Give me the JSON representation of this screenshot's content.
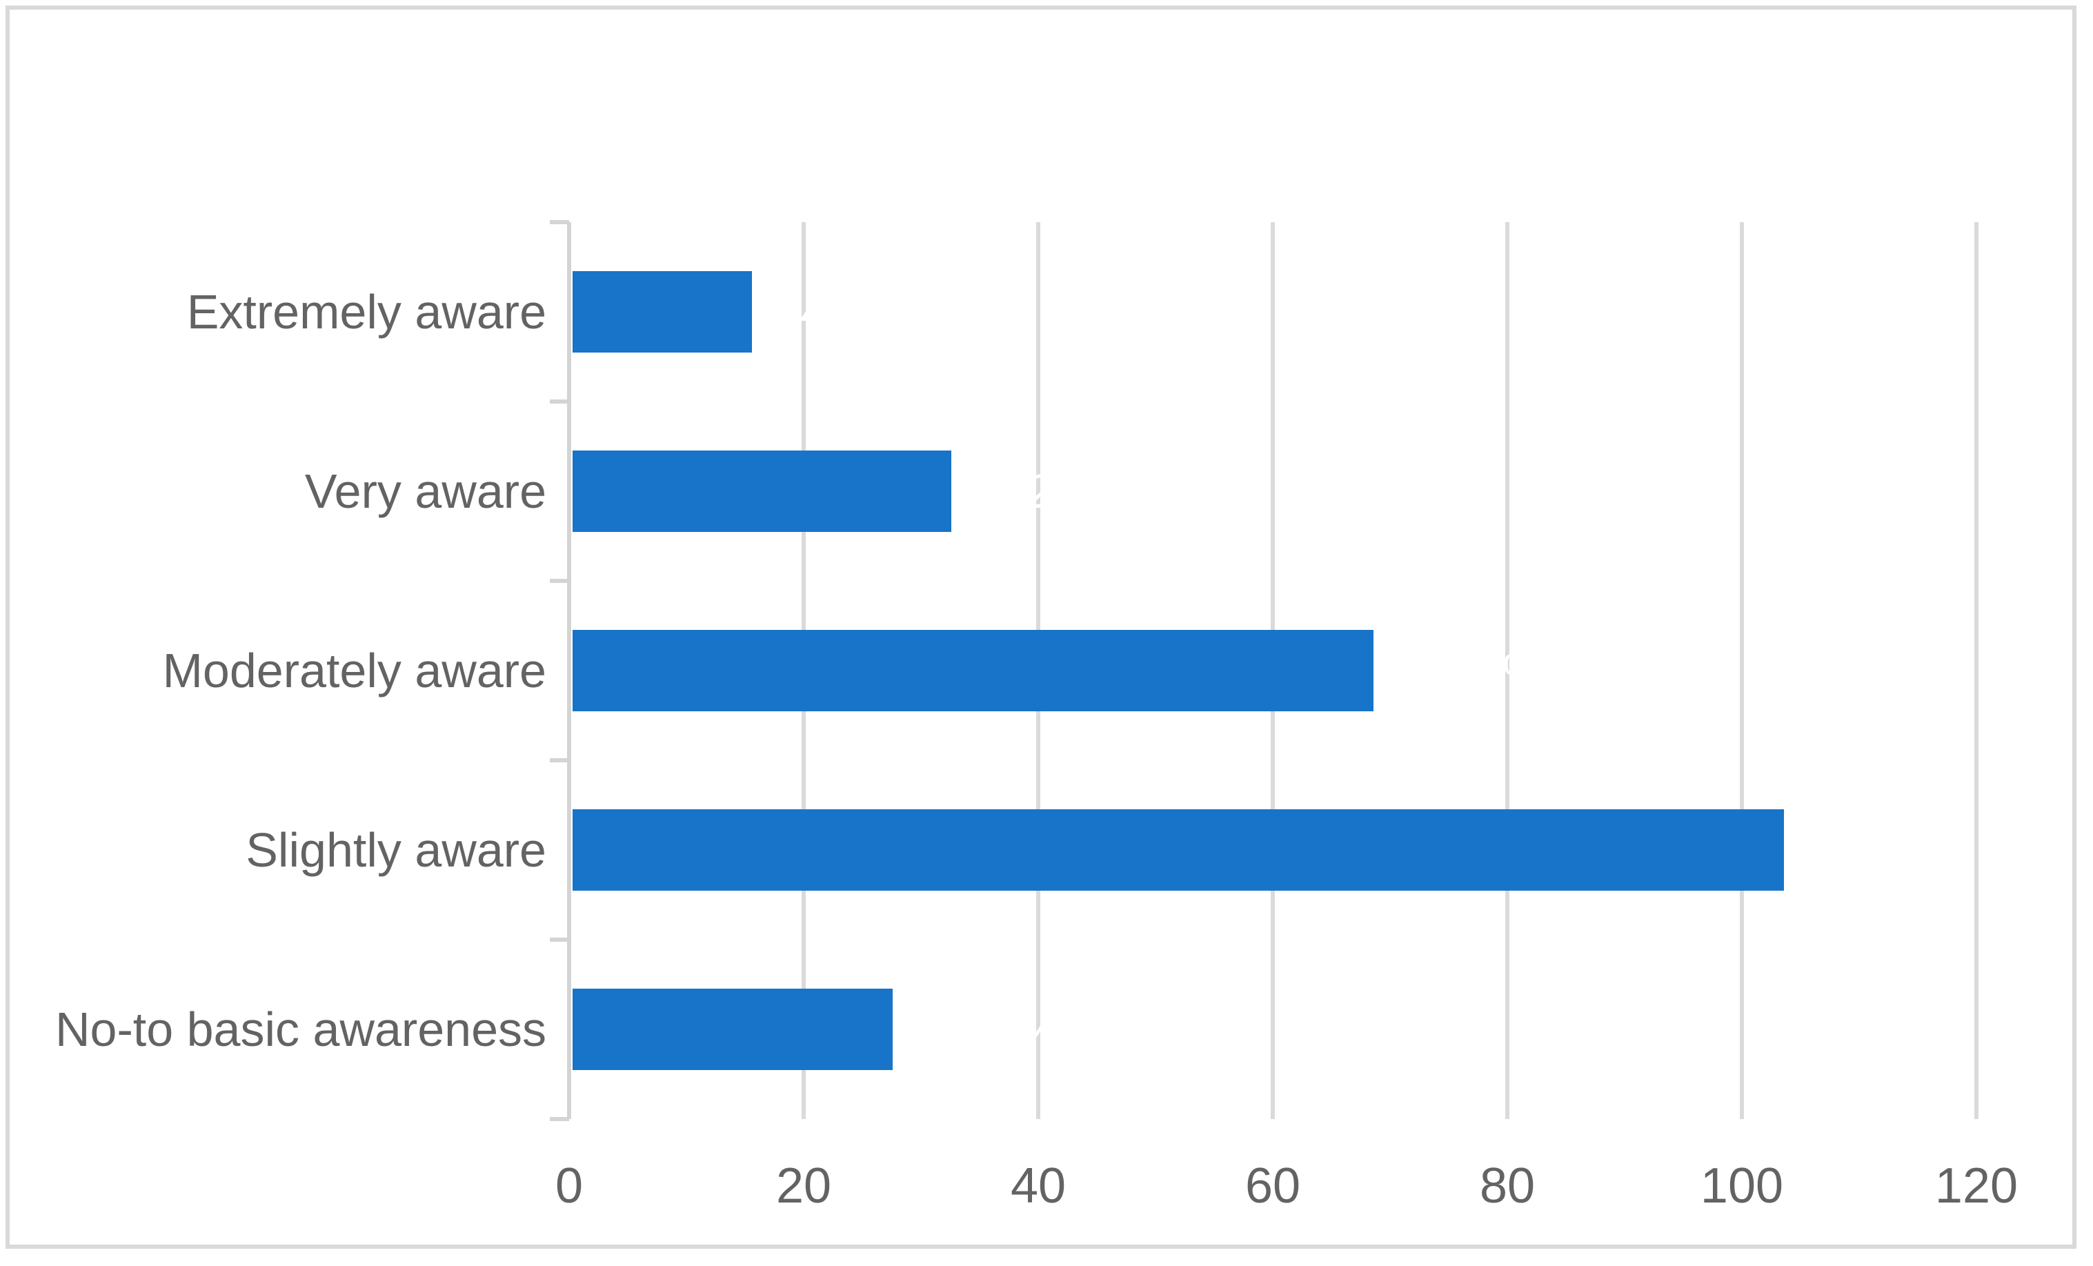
{
  "chart_data": {
    "type": "bar",
    "orientation": "horizontal",
    "title": "",
    "xlabel": "",
    "ylabel": "",
    "categories": [
      "Extremely aware",
      "Very aware",
      "Moderately aware",
      "Slightly aware",
      "No-to basic awareness"
    ],
    "values": [
      16,
      33,
      69,
      104,
      28
    ],
    "data_labels": [
      "6.40%",
      "13.20%",
      "27.60%",
      "41.60%",
      "11.20%"
    ],
    "data_label_color": "#ffffff",
    "x_ticks": [
      0,
      20,
      40,
      60,
      80,
      100,
      120
    ],
    "xlim": [
      0,
      120
    ],
    "grid": "vertical-gridlines-on",
    "legend": "none",
    "colors": {
      "bar": "#1874c8",
      "gridline": "#dadada",
      "axis_text": "#636363",
      "frame_border": "#d9d9d9",
      "background": "#ffffff"
    }
  }
}
